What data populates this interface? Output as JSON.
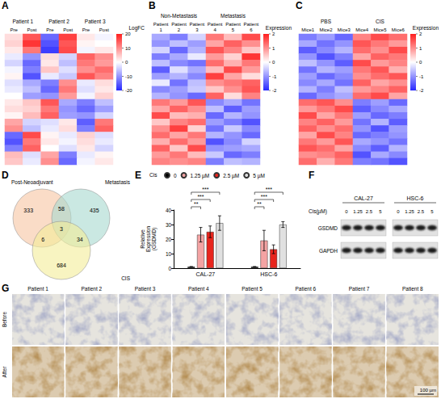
{
  "chart_data": [
    {
      "panel": "A",
      "type": "heatmap",
      "tick_labels": "x",
      "groups": [
        {
          "label": "Patient 1",
          "columns": [
            "Pre",
            "Post"
          ]
        },
        {
          "label": "Patient 2",
          "columns": [
            "Pre",
            "Post"
          ]
        },
        {
          "label": "Patient 3",
          "columns": [
            "Pre",
            "Post"
          ]
        }
      ],
      "rows": [
        [
          3,
          15,
          -14,
          17,
          2,
          -1
        ],
        [
          4,
          18,
          -16,
          15,
          1,
          0
        ],
        [
          2,
          12,
          -18,
          16,
          -1,
          2
        ],
        [
          -2,
          -10,
          3,
          -4,
          14,
          10
        ],
        [
          -4,
          -14,
          2,
          -6,
          12,
          9
        ],
        [
          -1,
          -12,
          5,
          -3,
          10,
          13
        ],
        [
          1,
          -16,
          -2,
          -5,
          15,
          11
        ],
        [
          -3,
          -8,
          -12,
          10,
          -2,
          3
        ],
        [
          -2,
          -6,
          -14,
          12,
          -3,
          2
        ],
        [
          0,
          -9,
          -10,
          9,
          -1,
          4
        ],
        [
          2,
          5,
          15,
          -8,
          -12,
          -6
        ],
        [
          3,
          4,
          12,
          -10,
          -14,
          -9
        ],
        [
          1,
          6,
          14,
          -9,
          -10,
          -4
        ],
        [
          8,
          -4,
          -3,
          2,
          -15,
          12
        ],
        [
          10,
          -6,
          -2,
          3,
          -12,
          14
        ],
        [
          -14,
          16,
          1,
          -2,
          4,
          -3
        ],
        [
          -16,
          12,
          2,
          -1,
          3,
          -2
        ],
        [
          -12,
          14,
          0,
          -3,
          2,
          -4
        ],
        [
          6,
          -3,
          8,
          -12,
          -2,
          1
        ],
        [
          5,
          -2,
          10,
          -14,
          -1,
          2
        ]
      ],
      "colorbar": {
        "title": "LogFC",
        "range": [
          -20,
          20
        ],
        "ticks": [
          20,
          10,
          0,
          -10,
          -20
        ],
        "colors": [
          "#2828ff",
          "#ffffff",
          "#ff1e1e"
        ]
      }
    },
    {
      "panel": "B",
      "type": "heatmap",
      "tick_labels": "x",
      "groups": [
        {
          "label": "Non-Metastasis",
          "columns": [
            "Patient1",
            "Patient2",
            "Patient3"
          ]
        },
        {
          "label": "Metastasis",
          "columns": [
            "Patient4",
            "Patient5",
            "Patient6"
          ]
        }
      ],
      "rows": [
        [
          -0.8,
          -1.2,
          -0.4,
          1.2,
          0.6,
          1.6
        ],
        [
          -1.0,
          -0.6,
          -0.9,
          0.8,
          1.4,
          1.0
        ],
        [
          -0.4,
          -1.4,
          -0.7,
          1.5,
          1.1,
          0.5
        ],
        [
          -1.2,
          -0.8,
          -0.2,
          0.9,
          0.4,
          1.8
        ],
        [
          -0.6,
          -1.1,
          -1.3,
          1.3,
          0.7,
          1.2
        ],
        [
          -1.5,
          -0.3,
          -0.8,
          0.6,
          1.6,
          0.9
        ],
        [
          -0.9,
          -0.7,
          -1.1,
          1.7,
          0.8,
          0.3
        ],
        [
          -0.2,
          -1.3,
          -0.6,
          1.0,
          1.2,
          1.4
        ],
        [
          -1.1,
          -0.9,
          -0.5,
          0.5,
          1.0,
          1.5
        ],
        [
          -0.7,
          -1.0,
          -1.4,
          1.4,
          0.3,
          1.1
        ],
        [
          1.2,
          0.9,
          1.5,
          -1.1,
          -0.8,
          -1.3
        ],
        [
          0.8,
          1.4,
          1.0,
          -0.6,
          -1.5,
          -0.9
        ],
        [
          1.6,
          0.6,
          0.7,
          -1.4,
          -0.7,
          -1.0
        ],
        [
          0.5,
          1.1,
          1.3,
          -0.9,
          -1.2,
          -1.6
        ],
        [
          1.0,
          1.7,
          0.4,
          -1.3,
          -0.5,
          -1.1
        ],
        [
          1.3,
          0.8,
          1.2,
          -0.7,
          -1.0,
          -1.4
        ],
        [
          0.7,
          1.3,
          0.9,
          -1.6,
          -1.1,
          -0.4
        ],
        [
          1.4,
          0.5,
          1.6,
          -1.0,
          -0.9,
          -0.8
        ],
        [
          0.9,
          1.2,
          0.6,
          -0.5,
          -1.4,
          -1.2
        ],
        [
          1.1,
          1.0,
          1.1,
          -1.2,
          -0.6,
          -0.7
        ]
      ],
      "colorbar": {
        "title": "Expression",
        "range": [
          -2,
          2
        ],
        "ticks": [
          2,
          1,
          0,
          -1,
          -2
        ],
        "colors": [
          "#2828ff",
          "#ffffff",
          "#ff1e1e"
        ]
      }
    },
    {
      "panel": "C",
      "type": "heatmap",
      "tick_labels": "x",
      "groups": [
        {
          "label": "PBS",
          "columns": [
            "Mice1",
            "Mice2",
            "Mice3"
          ]
        },
        {
          "label": "CIS",
          "columns": [
            "Mice4",
            "Mice5",
            "Mice6"
          ]
        }
      ],
      "rows": [
        [
          -1.2,
          -0.9,
          -1.4,
          1.1,
          1.6,
          1.3
        ],
        [
          -0.8,
          -1.3,
          -1.0,
          1.5,
          1.2,
          0.9
        ],
        [
          -1.5,
          -1.1,
          -0.7,
          1.3,
          1.0,
          1.6
        ],
        [
          -1.0,
          -1.6,
          -1.2,
          0.8,
          1.4,
          1.2
        ],
        [
          -0.6,
          -1.0,
          -1.5,
          1.6,
          0.9,
          1.1
        ],
        [
          -1.3,
          -0.7,
          -0.9,
          1.2,
          1.5,
          0.7
        ],
        [
          -0.9,
          -1.4,
          -1.1,
          1.0,
          1.3,
          1.5
        ],
        [
          -1.1,
          -0.8,
          -1.3,
          1.4,
          0.8,
          1.0
        ],
        [
          -0.7,
          -1.2,
          -0.6,
          0.9,
          1.1,
          1.4
        ],
        [
          -1.4,
          -1.0,
          -0.8,
          1.3,
          1.6,
          0.8
        ],
        [
          1.3,
          1.5,
          1.0,
          -1.2,
          -0.9,
          -1.4
        ],
        [
          0.9,
          1.2,
          1.6,
          -1.5,
          -1.1,
          -0.8
        ],
        [
          1.6,
          0.8,
          1.2,
          -0.9,
          -1.4,
          -1.2
        ],
        [
          1.1,
          1.4,
          0.9,
          -1.3,
          -0.7,
          -1.5
        ],
        [
          1.4,
          1.0,
          1.3,
          -1.0,
          -1.6,
          -0.9
        ],
        [
          0.8,
          1.6,
          1.1,
          -1.4,
          -1.2,
          -1.0
        ],
        [
          1.2,
          0.9,
          1.5,
          -0.8,
          -1.0,
          -1.3
        ],
        [
          1.5,
          1.3,
          0.8,
          -1.1,
          -1.5,
          -0.7
        ],
        [
          1.0,
          1.1,
          1.4,
          -1.6,
          -0.8,
          -1.1
        ],
        [
          1.3,
          0.7,
          1.2,
          -1.2,
          -1.3,
          -1.6
        ]
      ],
      "colorbar": {
        "title": "Expression",
        "range": [
          -2,
          2
        ],
        "ticks": [
          2,
          1,
          0,
          -1,
          -2
        ],
        "colors": [
          "#2828ff",
          "#ffffff",
          "#ff1e1e"
        ]
      }
    },
    {
      "panel": "D",
      "type": "venn",
      "sets": [
        "Post-Neoadjuvant",
        "Metastasis",
        "CIS"
      ],
      "colors": [
        "#f6c4a2",
        "#a6d9cf",
        "#f3ec98"
      ],
      "regions": [
        {
          "sets": [
            "Post-Neoadjuvant"
          ],
          "count": 333
        },
        {
          "sets": [
            "Metastasis"
          ],
          "count": 435
        },
        {
          "sets": [
            "CIS"
          ],
          "count": 684
        },
        {
          "sets": [
            "Post-Neoadjuvant",
            "Metastasis"
          ],
          "count": 58
        },
        {
          "sets": [
            "Post-Neoadjuvant",
            "CIS"
          ],
          "count": 6
        },
        {
          "sets": [
            "Metastasis",
            "CIS"
          ],
          "count": 34
        },
        {
          "sets": [
            "Post-Neoadjuvant",
            "Metastasis",
            "CIS"
          ],
          "count": 3
        }
      ]
    },
    {
      "panel": "E",
      "type": "bar",
      "legend_title": "Cis",
      "legend": "top",
      "grid": false,
      "categories": [
        "CAL-27",
        "HSC-6"
      ],
      "series": [
        {
          "name": "0",
          "color": "#000000",
          "values": [
            1,
            1
          ],
          "errors": [
            0.1,
            0.1
          ]
        },
        {
          "name": "1.25 µM",
          "color": "#f4a3a3",
          "values": [
            23,
            19
          ],
          "errors": [
            5,
            7
          ]
        },
        {
          "name": "2.5 µM",
          "color": "#e8251d",
          "values": [
            25,
            13
          ],
          "errors": [
            4,
            3
          ]
        },
        {
          "name": "5 µM",
          "color": "#e0e0e0",
          "values": [
            31,
            30
          ],
          "errors": [
            5,
            2
          ]
        }
      ],
      "ylabel": "Relative Expression(GSDMD)",
      "ylim": [
        0,
        40
      ],
      "yticks": [
        0,
        10,
        20,
        30,
        40
      ],
      "significance": [
        {
          "category": "CAL-27",
          "from": "0",
          "to": "1.25 µM",
          "label": "**"
        },
        {
          "category": "CAL-27",
          "from": "0",
          "to": "2.5 µM",
          "label": "***"
        },
        {
          "category": "CAL-27",
          "from": "0",
          "to": "5 µM",
          "label": "***"
        },
        {
          "category": "HSC-6",
          "from": "0",
          "to": "1.25 µM",
          "label": "**"
        },
        {
          "category": "HSC-6",
          "from": "0",
          "to": "2.5 µM",
          "label": "***"
        },
        {
          "category": "HSC-6",
          "from": "0",
          "to": "5 µM",
          "label": "***"
        }
      ]
    },
    {
      "panel": "F",
      "type": "western_blot",
      "cell_lines": [
        "CAL-27",
        "HSC-6"
      ],
      "dose_label": "Cis(µM)",
      "doses": [
        0,
        1.25,
        2.5,
        5
      ],
      "proteins": [
        "GSDMD",
        "GAPDH"
      ]
    },
    {
      "panel": "G",
      "type": "image_grid",
      "patients": [
        "Patient 1",
        "Patient 2",
        "Patient 3",
        "Patient 4",
        "Patient 5",
        "Patient 6",
        "Patient 7",
        "Patient 8"
      ],
      "rows": [
        "Before",
        "After"
      ],
      "scale_bar": "100 µm"
    }
  ]
}
